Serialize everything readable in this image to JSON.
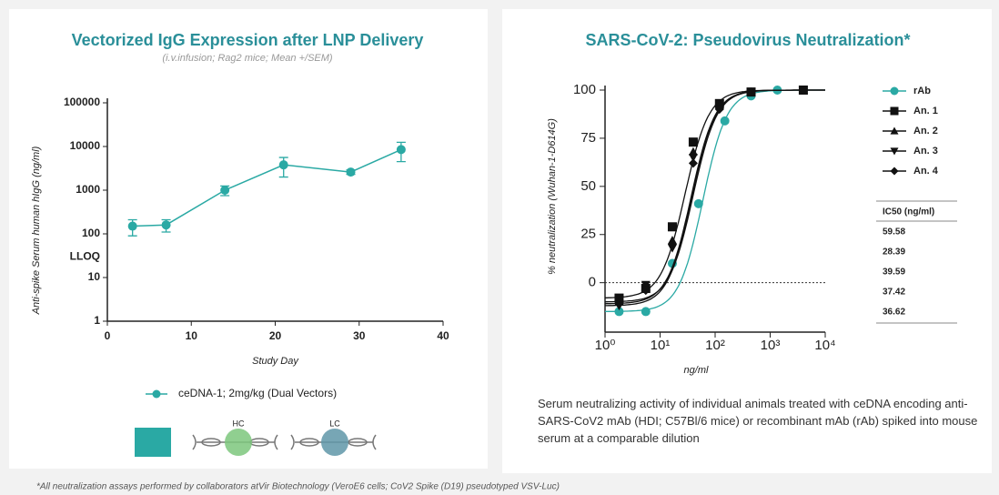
{
  "chart_data": [
    {
      "type": "line",
      "title": "Vectorized IgG Expression after LNP Delivery",
      "subtitle": "(i.v.infusion; Rag2 mice; Mean +/SEM)",
      "x_label": "Study Day",
      "y_label": "Anti-spike Serum human hIgG (ng/ml)",
      "x": [
        3,
        7,
        14,
        21,
        29,
        35
      ],
      "series": [
        {
          "name": "ceDNA-1; 2mg/kg (Dual Vectors)",
          "color": "#2aa9a4",
          "values": [
            150,
            160,
            1000,
            3800,
            2600,
            8500
          ],
          "errors": [
            60,
            50,
            250,
            1800,
            300,
            4000
          ]
        }
      ],
      "xlim": [
        0,
        40
      ],
      "xticks": [
        0,
        10,
        20,
        30,
        40
      ],
      "ylim": [
        1,
        100000
      ],
      "yticks": [
        1,
        10,
        100,
        1000,
        10000,
        100000
      ],
      "log_y": true,
      "annotations": [
        {
          "text": "LLOQ",
          "y": 30
        }
      ]
    },
    {
      "type": "scatter",
      "title": "SARS-CoV-2: Pseudovirus Neutralization*",
      "x_label": "ng/ml",
      "y_label": "% neutralization (Wuhan-1-D614G)",
      "series": [
        {
          "name": "rAb",
          "color": "#2aa9a4",
          "marker": "circle",
          "x": [
            1.8,
            5.5,
            16.7,
            50,
            150,
            450,
            1350
          ],
          "values": [
            -15,
            -15,
            10,
            41,
            84,
            97,
            100
          ]
        },
        {
          "name": "An. 1",
          "color": "#111111",
          "marker": "square",
          "x": [
            1.8,
            5.5,
            16.7,
            40,
            120,
            450,
            4000
          ],
          "values": [
            -8,
            -3,
            29,
            73,
            93,
            99,
            100
          ]
        },
        {
          "name": "An. 2",
          "color": "#111111",
          "marker": "triangle",
          "x": [
            1.8,
            5.5,
            16.7,
            40,
            120,
            450,
            4000
          ],
          "values": [
            -10,
            -2,
            22,
            68,
            92,
            99,
            100
          ]
        },
        {
          "name": "An. 3",
          "color": "#111111",
          "marker": "triangle-down",
          "x": [
            1.8,
            5.5,
            16.7,
            40,
            120,
            450,
            4000
          ],
          "values": [
            -12,
            -1,
            18,
            65,
            91,
            99,
            100
          ]
        },
        {
          "name": "An. 4",
          "color": "#111111",
          "marker": "diamond",
          "x": [
            1.8,
            5.5,
            16.7,
            40,
            120,
            450,
            4000
          ],
          "values": [
            -11,
            -4,
            20,
            62,
            90,
            99,
            100
          ]
        }
      ],
      "xlim": [
        1,
        10000
      ],
      "log_x": true,
      "xticks": [
        {
          "value": 1,
          "label": "10⁰"
        },
        {
          "value": 10,
          "label": "10¹"
        },
        {
          "value": 100,
          "label": "10²"
        },
        {
          "value": 1000,
          "label": "10³"
        },
        {
          "value": 10000,
          "label": "10⁴"
        }
      ],
      "ylim": [
        -20,
        100
      ],
      "yticks": [
        0,
        25,
        50,
        75,
        100
      ],
      "ic50_table": {
        "header": "IC50 (ng/ml)",
        "values": [
          59.58,
          28.39,
          39.59,
          37.42,
          36.62
        ]
      }
    }
  ],
  "caption": "Serum neutralizing activity of individual animals treated with ceDNA encoding anti-SARS-CoV2 mAb (HDI; C57Bl/6 mice) or recombinant mAb (rAb) spiked into mouse serum at a comparable dilution",
  "vector_labels": [
    "HC",
    "LC"
  ],
  "footnote": "*All neutralization assays performed by collaborators atVir Biotechnology (VeroE6 cells; CoV2 Spike (D19) pseudotyped VSV-Luc)"
}
